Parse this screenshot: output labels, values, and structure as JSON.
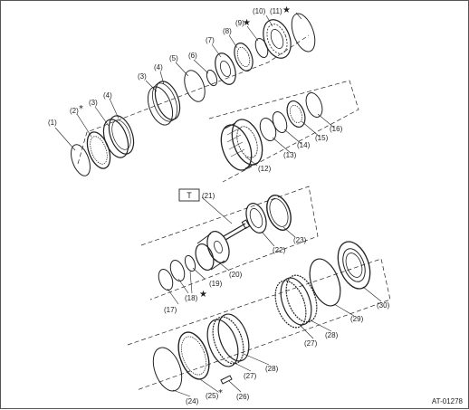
{
  "diagram": {
    "reference_code": "AT-01278",
    "torque_symbol": "T",
    "labels": {
      "p1": "(1)",
      "p2": "(2)",
      "p3a": "(3)",
      "p3b": "(3)",
      "p4a": "(4)",
      "p4b": "(4)",
      "p5": "(5)",
      "p6": "(6)",
      "p7": "(7)",
      "p8": "(8)",
      "p9": "(9)",
      "p10": "(10)",
      "p11": "(11)",
      "p12": "(12)",
      "p13": "(13)",
      "p14": "(14)",
      "p15": "(15)",
      "p16": "(16)",
      "p17": "(17)",
      "p18": "(18)",
      "p19": "(19)",
      "p20": "(20)",
      "p21": "(21)",
      "p22": "(22)",
      "p23": "(23)",
      "p24": "(24)",
      "p25": "(25)",
      "p26": "(26)",
      "p27a": "(27)",
      "p27b": "(27)",
      "p28a": "(28)",
      "p28b": "(28)",
      "p29": "(29)",
      "p30": "(30)"
    },
    "marks": {
      "star": "★",
      "asterisk": "*"
    }
  }
}
